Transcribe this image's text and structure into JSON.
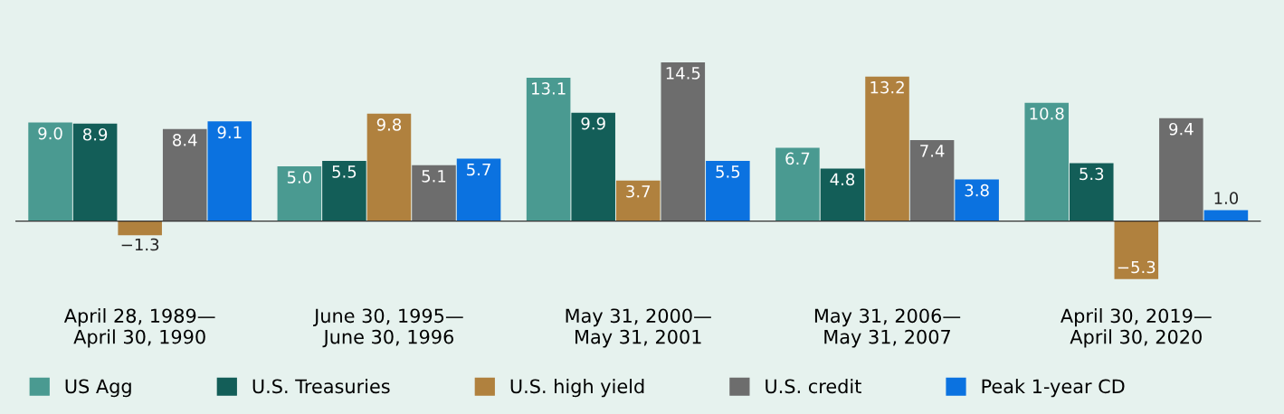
{
  "chart_data": {
    "type": "bar",
    "categories": [
      "April 28, 1989—\nApril 30, 1990",
      "June 30, 1995—\nJune 30, 1996",
      "May 31, 2000—\nMay 31, 2001",
      "May 31, 2006—\nMay 31, 2007",
      "April 30, 2019—\nApril 30, 2020"
    ],
    "series": [
      {
        "name": "US Agg",
        "color": "#4a9a91",
        "values": [
          9.0,
          5.0,
          13.1,
          6.7,
          10.8
        ],
        "value_labels": [
          "9.0",
          "5.0",
          "13.1",
          "6.7",
          "10.8"
        ]
      },
      {
        "name": "U.S. Treasuries",
        "color": "#135e58",
        "values": [
          8.9,
          5.5,
          9.9,
          4.8,
          5.3
        ],
        "value_labels": [
          "8.9",
          "5.5",
          "9.9",
          "4.8",
          "5.3"
        ]
      },
      {
        "name": "U.S. high yield",
        "color": "#b0813e",
        "values": [
          -1.3,
          9.8,
          3.7,
          13.2,
          -5.3
        ],
        "value_labels": [
          "−1.3",
          "9.8",
          "3.7",
          "13.2",
          "−5.3"
        ]
      },
      {
        "name": "U.S. credit",
        "color": "#6d6d6d",
        "values": [
          8.4,
          5.1,
          14.5,
          7.4,
          9.4
        ],
        "value_labels": [
          "8.4",
          "5.1",
          "14.5",
          "7.4",
          "9.4"
        ]
      },
      {
        "name": "Peak 1-year CD",
        "color": "#0b72e0",
        "values": [
          9.1,
          5.7,
          5.5,
          3.8,
          1.0
        ],
        "value_labels": [
          "9.1",
          "5.7",
          "5.5",
          "3.8",
          "1.0"
        ]
      }
    ],
    "legend": "bottom",
    "grid": false
  }
}
